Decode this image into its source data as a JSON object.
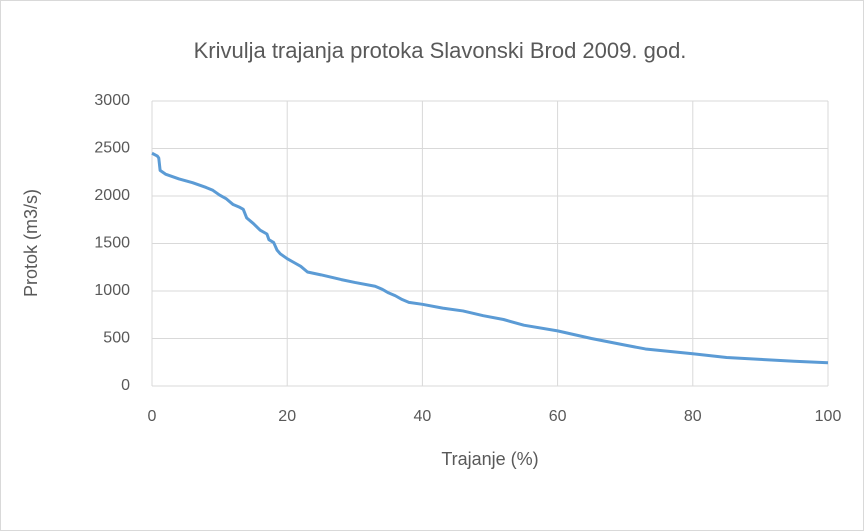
{
  "chart_data": {
    "type": "line",
    "title": "Krivulja trajanja protoka Slavonski Brod 2009. god.",
    "x_label": "Trajanje (%)",
    "y_label": "Protok (m3/s)",
    "color": "#5b9bd5",
    "x": [
      0,
      0.8,
      1,
      1.2,
      2,
      4,
      6,
      8,
      9,
      10,
      11,
      12,
      13,
      13.5,
      14,
      15,
      16,
      17,
      17.3,
      18,
      18.5,
      19,
      20,
      21,
      22,
      23,
      25,
      28,
      30,
      33,
      34,
      35,
      36,
      37,
      38,
      40,
      43,
      46,
      49,
      52,
      55,
      60,
      65,
      70,
      73,
      80,
      85,
      90,
      95,
      100
    ],
    "values": [
      2450,
      2420,
      2400,
      2270,
      2230,
      2180,
      2140,
      2090,
      2060,
      2010,
      1970,
      1910,
      1880,
      1860,
      1770,
      1710,
      1640,
      1600,
      1540,
      1510,
      1430,
      1390,
      1340,
      1300,
      1260,
      1200,
      1170,
      1120,
      1090,
      1050,
      1020,
      980,
      950,
      910,
      880,
      860,
      820,
      790,
      740,
      700,
      640,
      580,
      500,
      430,
      390,
      340,
      300,
      280,
      260,
      245
    ],
    "xlim": [
      0,
      100
    ],
    "xticks": [
      0,
      20,
      40,
      60,
      80,
      100
    ],
    "ylim": [
      0,
      3000
    ],
    "yticks": [
      0,
      500,
      1000,
      1500,
      2000,
      2500,
      3000
    ],
    "grid": true
  }
}
